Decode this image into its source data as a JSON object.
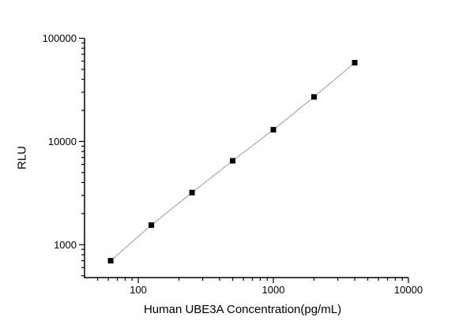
{
  "page": {
    "background_color": "#ffffff"
  },
  "chart_data": {
    "type": "line",
    "title": "",
    "xlabel": "Human UBE3A Concentration(pg/mL)",
    "ylabel": "RLU",
    "xscale": "log",
    "yscale": "log",
    "xlim": [
      40,
      10000
    ],
    "ylim": [
      480,
      100000
    ],
    "grid": false,
    "legend_position": "none",
    "x": [
      62.5,
      125,
      250,
      500,
      1000,
      2000,
      4000
    ],
    "y": [
      700,
      1550,
      3200,
      6500,
      13000,
      27000,
      58000
    ],
    "x_major_ticks": [
      100,
      1000,
      10000
    ],
    "x_major_tick_labels": [
      "100",
      "1000",
      "10000"
    ],
    "y_major_ticks": [
      1000,
      10000,
      100000
    ],
    "y_major_tick_labels": [
      "1000",
      "10000",
      "100000"
    ],
    "marker_shape": "square",
    "marker_color": "#000000",
    "marker_size": 7,
    "line_color": "#999999",
    "axis_color": "#000000",
    "text_color": "#000000"
  }
}
